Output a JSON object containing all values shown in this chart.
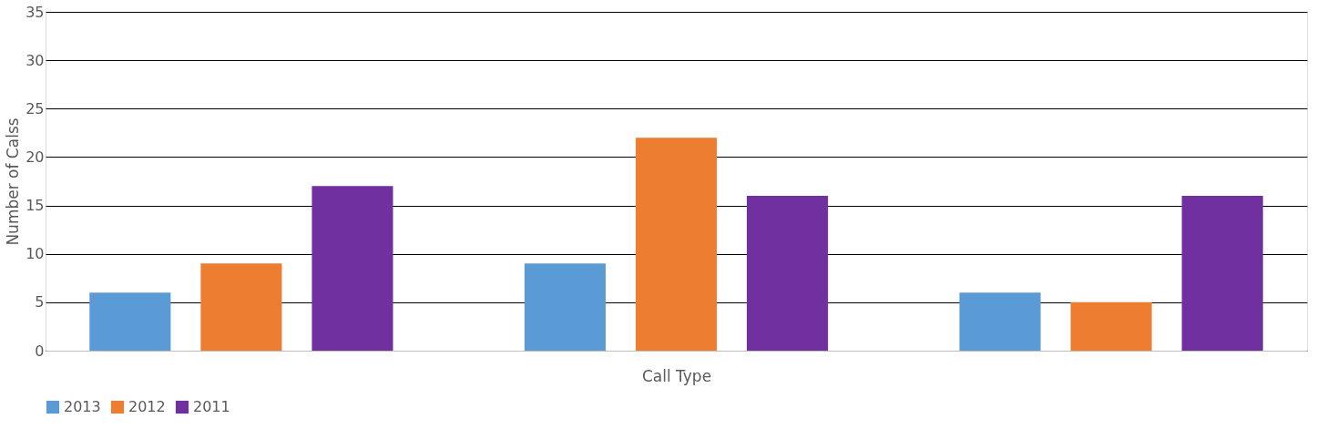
{
  "chart_data": {
    "type": "bar",
    "xlabel": "Call Type",
    "ylabel": "Number of Calss",
    "categories": [
      null,
      null,
      null
    ],
    "series": [
      {
        "name": "2013",
        "color": "#5b9bd5",
        "values": [
          6,
          9,
          6
        ]
      },
      {
        "name": "2012",
        "color": "#ed7d31",
        "values": [
          9,
          22,
          5
        ]
      },
      {
        "name": "2011",
        "color": "#7030a0",
        "values": [
          17,
          16,
          16
        ]
      }
    ],
    "ylim": [
      0,
      35
    ],
    "yticks": [
      0,
      5,
      10,
      15,
      20,
      25,
      30,
      35
    ],
    "grid": "y",
    "legend": "bottom",
    "tick_labels": "y"
  }
}
